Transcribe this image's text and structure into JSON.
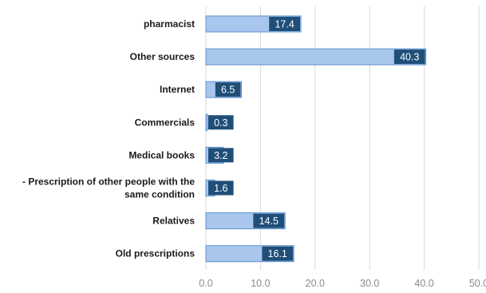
{
  "chart_data": {
    "type": "bar",
    "orientation": "horizontal",
    "categories": [
      [
        "pharmacist"
      ],
      [
        "Other sources"
      ],
      [
        "Internet"
      ],
      [
        "Commercials"
      ],
      [
        "Medical books"
      ],
      [
        "- Prescription of other people with the",
        "same condition"
      ],
      [
        "Relatives"
      ],
      [
        "Old prescriptions"
      ]
    ],
    "values": [
      17.4,
      40.3,
      6.5,
      0.3,
      3.2,
      1.6,
      14.5,
      16.1
    ],
    "x_ticks": [
      "0.0",
      "10.0",
      "20.0",
      "30.0",
      "40.0",
      "50.0"
    ],
    "xlim": [
      0,
      50
    ],
    "grid": true,
    "colors": {
      "bar_fill": "#a9c7ec",
      "bar_stroke": "#5b8fd0",
      "label_box": "#1f4e79",
      "grid": "#d9d9d9"
    }
  }
}
